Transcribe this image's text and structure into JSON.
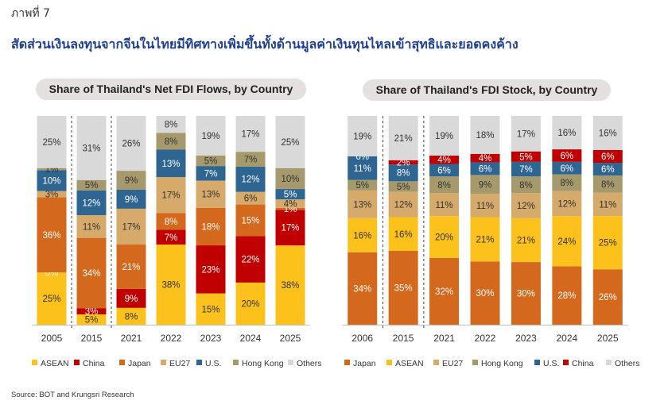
{
  "figure_label": "ภาพที่ 7",
  "headline": "สัดส่วนเงินลงทุนจากจีนในไทยมีทิศทางเพิ่มขึ้นทั้งด้านมูลค่าเงินทุนไหลเข้าสุทธิและยอดคงค้าง",
  "source": "Source: BOT and Krungsri Research",
  "colors": {
    "ASEAN": "#fcc21b",
    "China": "#c00000",
    "Japan": "#d4681c",
    "EU27": "#d6aa6a",
    "U.S.": "#2e6591",
    "Hong Kong": "#a69a6c",
    "Others": "#dad9d9"
  },
  "chart_data": [
    {
      "type": "bar",
      "stacked": true,
      "title": "Share of Thailand's Net FDI Flows, by Country",
      "categories": [
        "2005",
        "2015",
        "2021",
        "2022",
        "2023",
        "2024",
        "2025"
      ],
      "ylim": [
        0,
        100
      ],
      "grid": false,
      "legend_position": "bottom",
      "separators_after": [
        "2005",
        "2015"
      ],
      "series": [
        {
          "name": "ASEAN",
          "values": [
            25,
            5,
            8,
            38,
            15,
            20,
            38
          ]
        },
        {
          "name": "China",
          "values": [
            0,
            3,
            9,
            7,
            23,
            22,
            17
          ]
        },
        {
          "name": "Japan",
          "values": [
            36,
            34,
            21,
            8,
            18,
            15,
            1
          ]
        },
        {
          "name": "EU27",
          "values": [
            3,
            11,
            17,
            17,
            13,
            6,
            4
          ]
        },
        {
          "name": "U.S.",
          "values": [
            10,
            12,
            9,
            13,
            7,
            12,
            5
          ]
        },
        {
          "name": "Hong Kong",
          "values": [
            1,
            5,
            9,
            8,
            5,
            7,
            10
          ]
        },
        {
          "name": "Others",
          "values": [
            25,
            31,
            26,
            8,
            19,
            17,
            25
          ]
        }
      ],
      "labels": [
        [
          "25%",
          "0%",
          "36%",
          "3%",
          "10%",
          "1%",
          "25%"
        ],
        [
          "5%",
          "3%",
          "34%",
          "11%",
          "12%",
          "5%",
          "31%"
        ],
        [
          "8%",
          "9%",
          "21%",
          "17%",
          "9%",
          "9%",
          "26%"
        ],
        [
          "38%",
          "7%",
          "8%",
          "17%",
          "13%",
          "8%",
          "8%"
        ],
        [
          "15%",
          "23%",
          "18%",
          "13%",
          "7%",
          "5%",
          "19%"
        ],
        [
          "20%",
          "22%",
          "15%",
          "6%",
          "12%",
          "7%",
          "17%"
        ],
        [
          "38%",
          "17%",
          "1%",
          "4%",
          "5%",
          "10%",
          "25%"
        ]
      ]
    },
    {
      "type": "bar",
      "stacked": true,
      "title": "Share of Thailand's FDI Stock, by Country",
      "categories": [
        "2006",
        "2015",
        "2021",
        "2022",
        "2023",
        "2024",
        "2025"
      ],
      "ylim": [
        0,
        100
      ],
      "grid": false,
      "legend_position": "bottom",
      "separators_after": [
        "2006",
        "2015"
      ],
      "series": [
        {
          "name": "Japan",
          "values": [
            34,
            35,
            32,
            30,
            30,
            28,
            26
          ]
        },
        {
          "name": "ASEAN",
          "values": [
            16,
            16,
            20,
            21,
            21,
            24,
            25
          ]
        },
        {
          "name": "EU27",
          "values": [
            13,
            12,
            11,
            11,
            12,
            12,
            11
          ]
        },
        {
          "name": "Hong Kong",
          "values": [
            5,
            5,
            8,
            9,
            8,
            8,
            8
          ]
        },
        {
          "name": "U.S.",
          "values": [
            11,
            8,
            6,
            6,
            7,
            6,
            6
          ]
        },
        {
          "name": "China",
          "values": [
            0,
            2,
            4,
            4,
            5,
            6,
            6
          ]
        },
        {
          "name": "Others",
          "values": [
            19,
            21,
            19,
            18,
            17,
            16,
            16
          ]
        }
      ],
      "labels": [
        [
          "34%",
          "16%",
          "13%",
          "5%",
          "11%",
          "0%",
          "19%"
        ],
        [
          "35%",
          "16%",
          "12%",
          "5%",
          "8%",
          "2%",
          "21%"
        ],
        [
          "32%",
          "20%",
          "11%",
          "8%",
          "6%",
          "4%",
          "19%"
        ],
        [
          "30%",
          "21%",
          "11%",
          "9%",
          "6%",
          "4%",
          "18%"
        ],
        [
          "30%",
          "21%",
          "12%",
          "8%",
          "7%",
          "5%",
          "17%"
        ],
        [
          "28%",
          "24%",
          "12%",
          "8%",
          "6%",
          "6%",
          "16%"
        ],
        [
          "26%",
          "25%",
          "11%",
          "8%",
          "6%",
          "6%",
          "16%"
        ]
      ]
    }
  ]
}
